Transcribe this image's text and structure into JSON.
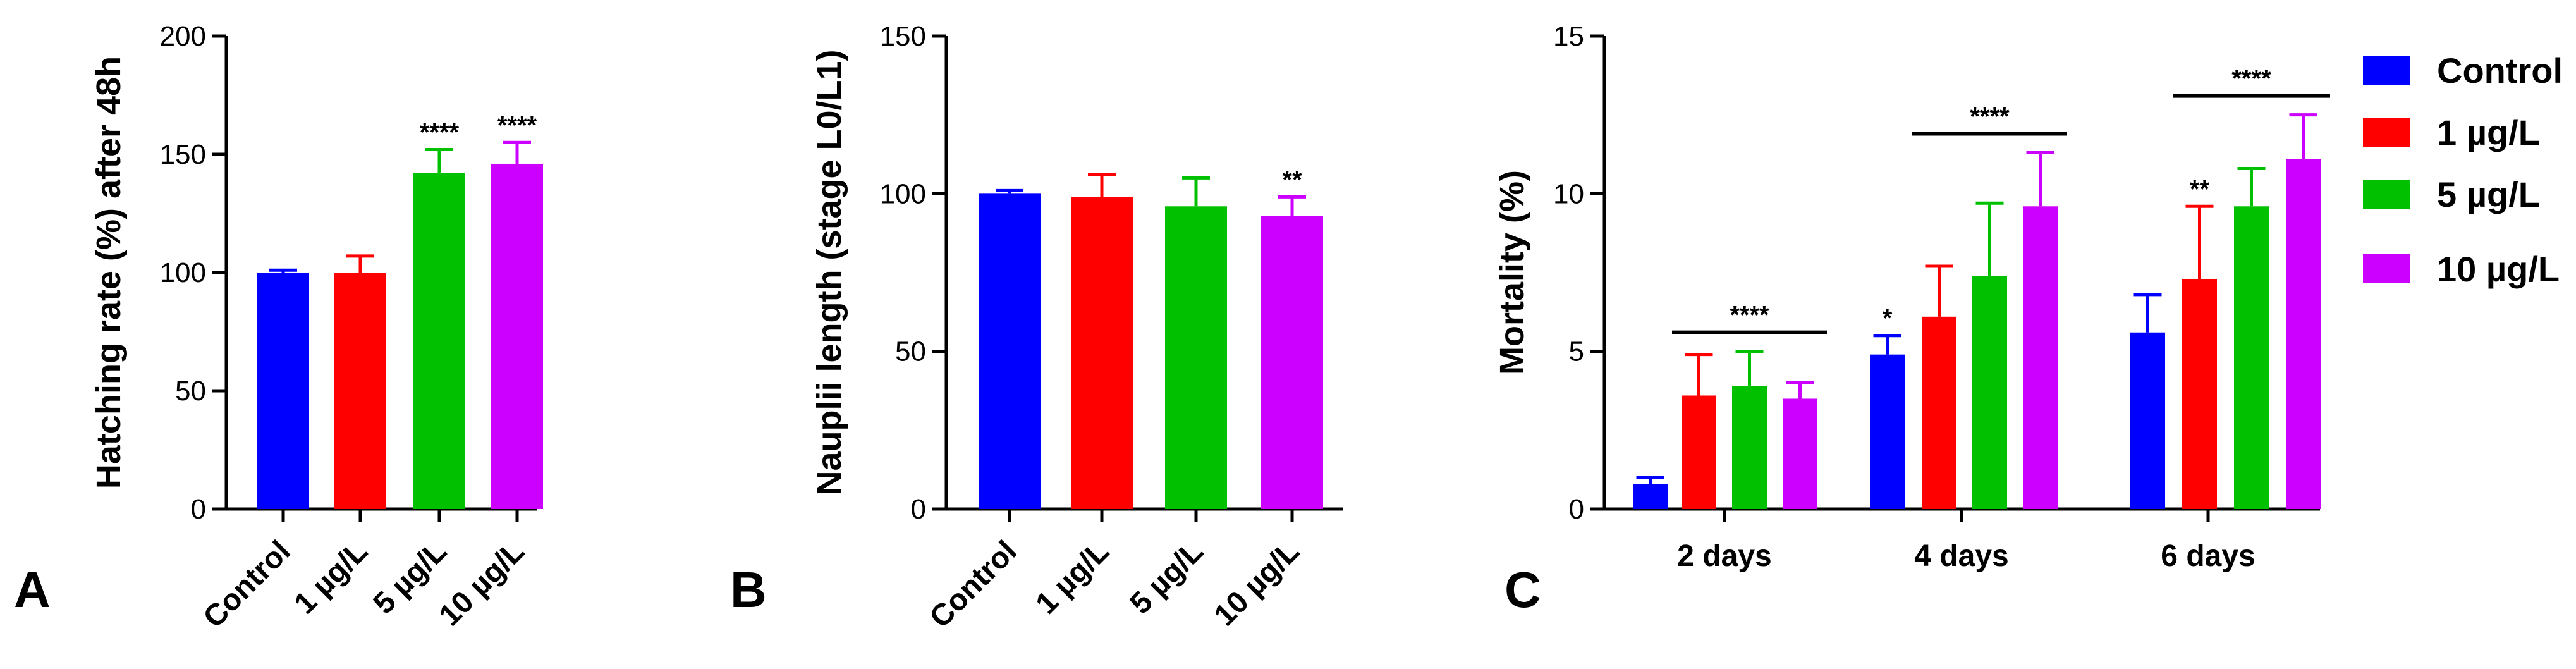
{
  "panels": [
    "A",
    "B",
    "C"
  ],
  "legend": [
    {
      "label": "Control",
      "color": "#0000ff"
    },
    {
      "label": "1 µg/L",
      "color": "#ff0000"
    },
    {
      "label": "5 µg/L",
      "color": "#00c000"
    },
    {
      "label": "10 µg/L",
      "color": "#cc00ff"
    }
  ],
  "chart_data": [
    {
      "type": "bar",
      "panel": "A",
      "ylabel": "Hatching rate (%) after 48h",
      "xlabel": "",
      "ylim": [
        0,
        200
      ],
      "yticks": [
        0,
        50,
        100,
        150,
        200
      ],
      "categories": [
        "Control",
        "1 µg/L",
        "5 µg/L",
        "10 µg/L"
      ],
      "values": [
        100,
        100,
        142,
        146
      ],
      "errors": [
        1,
        7,
        10,
        9
      ],
      "significance": [
        "",
        "",
        "****",
        "****"
      ]
    },
    {
      "type": "bar",
      "panel": "B",
      "ylabel": "Nauplii length (stage L0/L1)",
      "xlabel": "",
      "ylim": [
        0,
        150
      ],
      "yticks": [
        0,
        50,
        100,
        150
      ],
      "categories": [
        "Control",
        "1 µg/L",
        "5 µg/L",
        "10 µg/L"
      ],
      "values": [
        100,
        99,
        96,
        93
      ],
      "errors": [
        1,
        7,
        9,
        6
      ],
      "significance": [
        "",
        "",
        "",
        "**"
      ]
    },
    {
      "type": "bar",
      "panel": "C",
      "ylabel": "Mortality (%)",
      "xlabel": "",
      "ylim": [
        0,
        15
      ],
      "yticks": [
        0,
        5,
        10,
        15
      ],
      "categories": [
        "2 days",
        "4 days",
        "6 days"
      ],
      "series": [
        {
          "name": "Control",
          "values": [
            0.8,
            4.9,
            5.6
          ],
          "errors": [
            0.2,
            0.6,
            1.2
          ],
          "significance": [
            "",
            "*",
            ""
          ]
        },
        {
          "name": "1 µg/L",
          "values": [
            3.6,
            6.1,
            7.3
          ],
          "errors": [
            1.3,
            1.6,
            2.3
          ],
          "significance": [
            "",
            "",
            "**"
          ]
        },
        {
          "name": "5 µg/L",
          "values": [
            3.9,
            7.4,
            9.6
          ],
          "errors": [
            1.1,
            2.3,
            1.2
          ],
          "significance": [
            "",
            "",
            ""
          ]
        },
        {
          "name": "10 µg/L",
          "values": [
            3.5,
            9.6,
            11.1
          ],
          "errors": [
            0.5,
            1.7,
            1.4
          ],
          "significance": [
            "",
            "",
            ""
          ]
        }
      ],
      "group_significance": [
        "****",
        "****",
        "****"
      ]
    }
  ]
}
